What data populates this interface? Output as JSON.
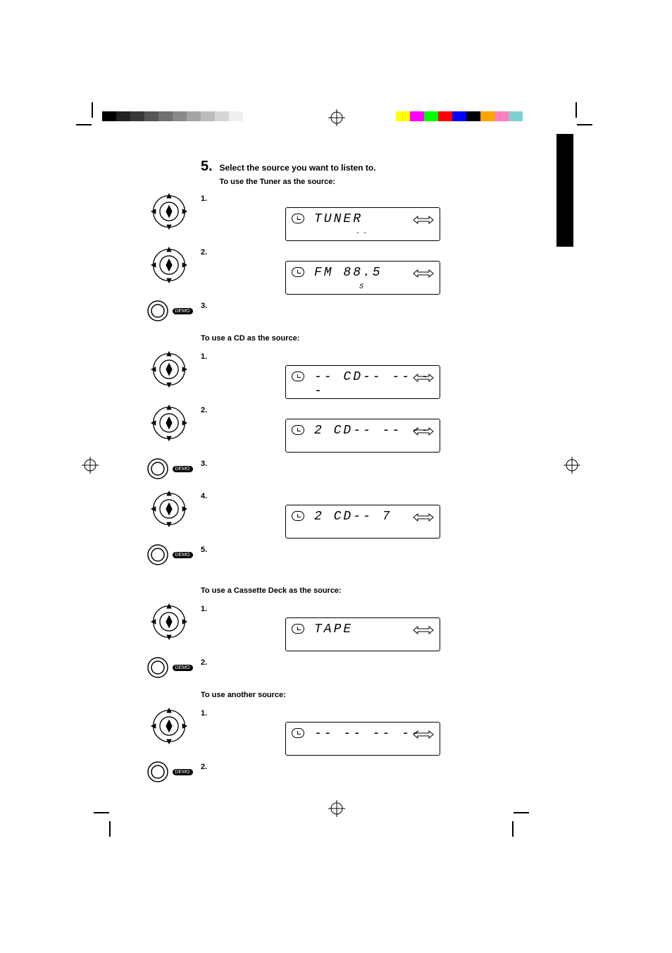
{
  "registration_bars": {
    "left_grays": [
      "#000000",
      "#222222",
      "#3a3a3a",
      "#555555",
      "#707070",
      "#8a8a8a",
      "#a4a4a4",
      "#bcbcbc",
      "#d6d6d6",
      "#efefef"
    ],
    "left_swatch_width": 20,
    "right_colors": [
      "#ffff00",
      "#ff00ff",
      "#00ff00",
      "#ff0000",
      "#0000ff",
      "#000000",
      "#ffa500",
      "#ff80c0",
      "#80d0d0"
    ],
    "right_swatch_width": 20,
    "height": 14
  },
  "lead": {
    "number": "5.",
    "title": "Select the source you want to listen to.",
    "tuner_heading": "To use the Tuner as the source:",
    "cd_heading": "To use a CD as the source:",
    "tape_heading": "To use a Cassette Deck as the source:",
    "other_heading": "To use another source:"
  },
  "steps": {
    "nums": [
      "1.",
      "2.",
      "3.",
      "4.",
      "5."
    ]
  },
  "knob_label": "DEMO",
  "lcd": {
    "tuner1_main": "TUNER",
    "tuner1_sub": "--",
    "tuner2_main": "FM   88.5",
    "tuner2_sub": "S",
    "cd1_main": "-- CD-- -- --",
    "cd1_sub": "",
    "cd2_main": "2  CD-- -- --",
    "cd2_sub": "",
    "cd4_main": "2  CD--  7",
    "cd4_sub": "",
    "tape_main": "TAPE",
    "tape_sub": "",
    "other_main": "-- -- -- --",
    "other_sub": ""
  }
}
